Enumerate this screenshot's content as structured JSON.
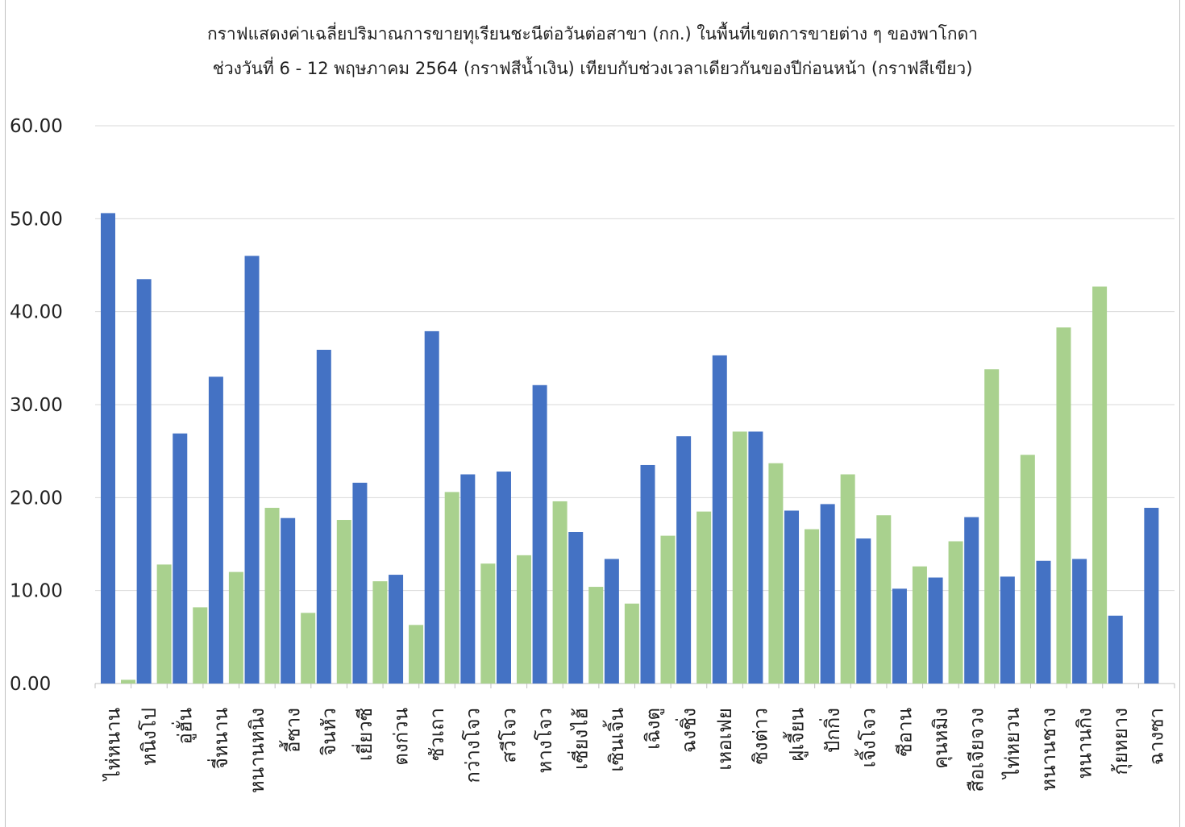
{
  "chart_data": {
    "type": "bar",
    "title": "กราฟแสดงค่าเฉลี่ยปริมาณการขายทุเรียนชะนีต่อวันต่อสาขา (กก.) ในพื้นที่เขตการขายต่าง ๆ ของพาโกดา",
    "subtitle": "ช่วงวันที่ 6 - 12 พฤษภาคม 2564 (กราฟสีน้ำเงิน) เทียบกับช่วงเวลาเดียวกันของปีก่อนหน้า (กราฟสีเขียว)",
    "xlabel": "",
    "ylabel": "",
    "ylim": [
      0,
      60
    ],
    "yticks": [
      "0.00",
      "10.00",
      "20.00",
      "30.00",
      "40.00",
      "50.00",
      "60.00"
    ],
    "grid": true,
    "legend": "none",
    "categories": [
      "ไห่หนาน",
      "หนิงโป",
      "อู่ฮั่น",
      "จี่หนาน",
      "หนานหนิง",
      "อี้ซาง",
      "จินหัว",
      "เยี่ยวซี",
      "ตงก่วน",
      "ซัวเถา",
      "กว่างโจว",
      "สวีโจว",
      "หางโจว",
      "เซี่ยงไฮ้",
      "เซินเจิ้น",
      "เฉิงตู",
      "ฉงชิ่ง",
      "เหอเฟย",
      "ซิงต่าว",
      "ฝูเจี้ยน",
      "ปักกิ่ง",
      "เจิ้งโจว",
      "ซีอาน",
      "คุนหมิง",
      "สือเจียจวง",
      "ไท่หยวน",
      "หนานชาง",
      "หนานกิง",
      "กุ้ยหยาง",
      "ฉางซา"
    ],
    "series": [
      {
        "color": "#4472C4",
        "values": [
          50.6,
          43.5,
          26.9,
          33.0,
          46.0,
          17.8,
          35.9,
          21.6,
          11.7,
          37.9,
          22.5,
          22.8,
          32.1,
          16.3,
          13.4,
          23.5,
          26.6,
          35.3,
          27.1,
          18.6,
          19.3,
          15.6,
          10.2,
          11.4,
          17.9,
          11.5,
          13.2,
          13.4,
          7.3,
          18.9
        ]
      },
      {
        "color": "#A9D18E",
        "values": [
          0.4,
          12.8,
          8.2,
          12.0,
          18.9,
          7.6,
          17.6,
          11.0,
          6.3,
          20.6,
          12.9,
          13.8,
          19.6,
          10.4,
          8.6,
          15.9,
          18.5,
          27.1,
          23.7,
          16.6,
          22.5,
          18.1,
          12.6,
          15.3,
          33.8,
          24.6,
          38.3,
          42.7,
          0,
          0
        ]
      }
    ]
  }
}
